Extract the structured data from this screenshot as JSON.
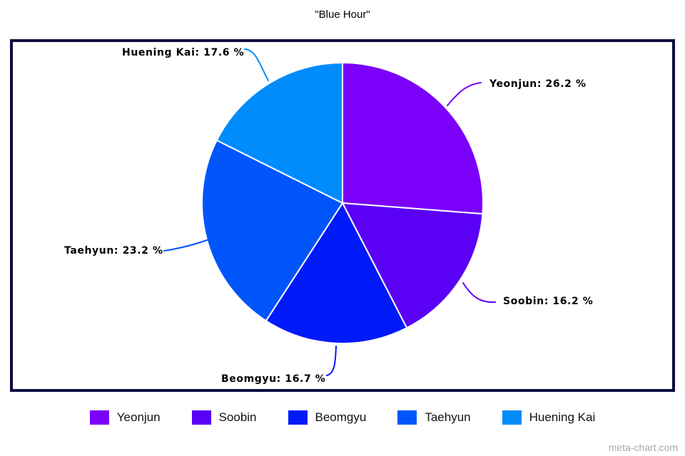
{
  "chart_data": {
    "type": "pie",
    "title": "\"Blue Hour\"",
    "categories": [
      "Yeonjun",
      "Soobin",
      "Beomgyu",
      "Taehyun",
      "Huening Kai"
    ],
    "values": [
      26.2,
      16.2,
      16.7,
      23.2,
      17.6
    ],
    "unit": "%",
    "colors": [
      "#7a00fa",
      "#5a00f5",
      "#001afa",
      "#0055fa",
      "#008cfa"
    ],
    "slice_border_color": "#ffffff",
    "start_angle_deg": 0,
    "direction": "clockwise",
    "legend_position": "bottom",
    "callouts": [
      "Yeonjun: 26.2 %",
      "Soobin: 16.2 %",
      "Beomgyu: 16.7 %",
      "Taehyun: 23.2 %",
      "Huening Kai: 17.6 %"
    ]
  },
  "frame": {
    "border_color": "#0d0d40"
  },
  "footer": {
    "watermark": "meta-chart.com"
  }
}
